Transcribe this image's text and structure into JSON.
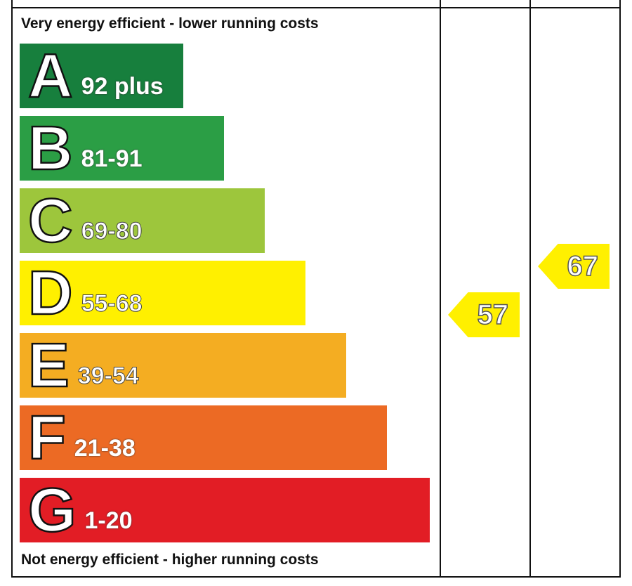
{
  "chart_data": {
    "type": "bar",
    "top_caption": "Very energy efficient - lower running costs",
    "bottom_caption": "Not energy efficient - higher running costs",
    "bands": [
      {
        "letter": "A",
        "range": "92 plus",
        "color": "#177f3d"
      },
      {
        "letter": "B",
        "range": "81-91",
        "color": "#2b9e45"
      },
      {
        "letter": "C",
        "range": "69-80",
        "color": "#9dc63c"
      },
      {
        "letter": "D",
        "range": "55-68",
        "color": "#fff000"
      },
      {
        "letter": "E",
        "range": "39-54",
        "color": "#f4ad22"
      },
      {
        "letter": "F",
        "range": "21-38",
        "color": "#ec6a24"
      },
      {
        "letter": "G",
        "range": "1-20",
        "color": "#e21d25"
      }
    ],
    "ratings": [
      {
        "value": "57",
        "color": "#fff000"
      },
      {
        "value": "67",
        "color": "#fff000"
      }
    ]
  }
}
